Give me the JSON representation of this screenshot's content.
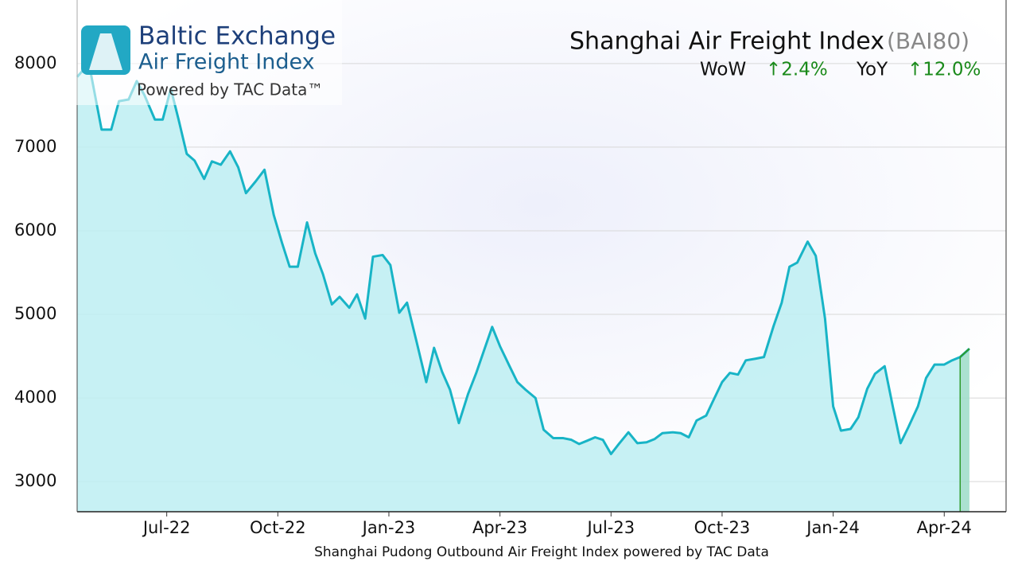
{
  "chart_data": {
    "type": "area",
    "title": "Shanghai Air Freight Index",
    "title_code": "(BAI80)",
    "wow_label": "WoW",
    "wow_value": "↑2.4%",
    "yoy_label": "YoY",
    "yoy_value": "↑12.0%",
    "logo_title": "Baltic Exchange",
    "logo_subtitle": "Air Freight Index",
    "logo_note": "Powered by TAC Data™",
    "x_label": "Shanghai Pudong Outbound Air Freight Index powered by TAC Data",
    "xlim": [
      4.58,
      29.67
    ],
    "ylim": [
      2640,
      8760
    ],
    "xticks": [
      {
        "value": 7,
        "label": "Jul-22"
      },
      {
        "value": 10,
        "label": "Oct-22"
      },
      {
        "value": 13,
        "label": "Jan-23"
      },
      {
        "value": 16,
        "label": "Apr-23"
      },
      {
        "value": 19,
        "label": "Jul-23"
      },
      {
        "value": 22,
        "label": "Oct-23"
      },
      {
        "value": 25,
        "label": "Jan-24"
      },
      {
        "value": 28,
        "label": "Apr-24"
      }
    ],
    "yticks": [
      3000,
      4000,
      5000,
      6000,
      7000,
      8000
    ],
    "grid": true,
    "last_segment_color": "#2e9a2a",
    "series": [
      {
        "name": "BAI80",
        "color": "#18b4c6",
        "fill": "#bdeef2",
        "x": [
          4.58,
          4.9,
          5.24,
          5.5,
          5.71,
          5.97,
          6.19,
          6.4,
          6.68,
          6.89,
          7.11,
          7.32,
          7.54,
          7.75,
          8.01,
          8.22,
          8.46,
          8.71,
          8.93,
          9.14,
          9.4,
          9.64,
          9.89,
          10.11,
          10.32,
          10.54,
          10.79,
          11.01,
          11.22,
          11.46,
          11.67,
          11.93,
          12.14,
          12.36,
          12.57,
          12.83,
          13.04,
          13.28,
          13.49,
          13.75,
          14.01,
          14.22,
          14.44,
          14.65,
          14.89,
          15.14,
          15.36,
          15.57,
          15.79,
          16.0,
          16.26,
          16.47,
          16.69,
          16.96,
          17.18,
          17.44,
          17.71,
          17.93,
          18.14,
          18.36,
          18.57,
          18.78,
          19.0,
          19.21,
          19.47,
          19.71,
          19.96,
          20.18,
          20.39,
          20.67,
          20.88,
          21.1,
          21.31,
          21.57,
          21.74,
          22.0,
          22.21,
          22.43,
          22.64,
          22.9,
          23.13,
          23.39,
          23.61,
          23.82,
          24.03,
          24.31,
          24.53,
          24.78,
          25.0,
          25.21,
          25.47,
          25.68,
          25.92,
          26.13,
          26.39,
          26.61,
          26.82,
          27.03,
          27.29,
          27.51,
          27.74,
          28.0,
          28.21,
          28.43,
          28.68
        ],
        "values": [
          7840,
          8000,
          7210,
          7210,
          7550,
          7570,
          7790,
          7620,
          7330,
          7330,
          7700,
          7330,
          6920,
          6840,
          6620,
          6830,
          6790,
          6950,
          6760,
          6450,
          6590,
          6730,
          6190,
          5860,
          5570,
          5570,
          6100,
          5730,
          5480,
          5120,
          5210,
          5080,
          5240,
          4950,
          5690,
          5710,
          5590,
          5020,
          5140,
          4670,
          4190,
          4600,
          4310,
          4100,
          3700,
          4050,
          4300,
          4570,
          4850,
          4620,
          4380,
          4190,
          4100,
          4000,
          3620,
          3520,
          3520,
          3500,
          3450,
          3490,
          3530,
          3500,
          3330,
          3450,
          3590,
          3460,
          3470,
          3510,
          3580,
          3590,
          3580,
          3530,
          3730,
          3790,
          3950,
          4190,
          4300,
          4280,
          4450,
          4470,
          4490,
          4860,
          5140,
          5570,
          5620,
          5870,
          5700,
          4950,
          3900,
          3610,
          3630,
          3770,
          4110,
          4290,
          4380,
          3900,
          3460,
          3650,
          3900,
          4240,
          4400,
          4400,
          4450,
          4490,
          4590
        ]
      }
    ]
  }
}
